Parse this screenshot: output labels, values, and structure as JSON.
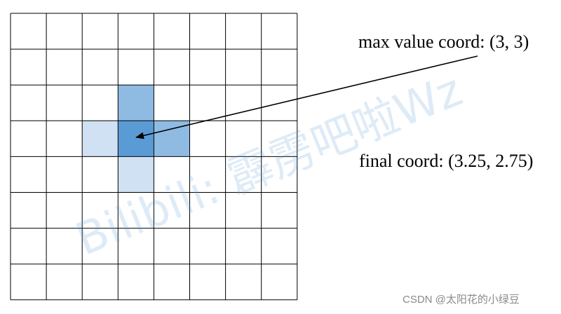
{
  "grid": {
    "rows": 8,
    "cols": 8,
    "line_color": "#000000",
    "background": "#ffffff",
    "highlighted_cells": [
      {
        "row": 2,
        "col": 3,
        "color": "#8fbbe3"
      },
      {
        "row": 3,
        "col": 2,
        "color": "#cfe1f2"
      },
      {
        "row": 3,
        "col": 3,
        "color": "#5b9bd5"
      },
      {
        "row": 3,
        "col": 4,
        "color": "#8fbbe3"
      },
      {
        "row": 4,
        "col": 3,
        "color": "#cfe1f2"
      }
    ]
  },
  "annotations": {
    "max_value_label": "max value coord: (3, 3)",
    "final_label": "final coord: (3.25, 2.75)",
    "arrow_target_cell": {
      "row": 3,
      "col": 3
    }
  },
  "watermark": {
    "text": "Bilibili: 霹雳吧啦Wz",
    "color": "#5b9bd5"
  },
  "credit": {
    "text": "CSDN @太阳花的小绿豆"
  }
}
